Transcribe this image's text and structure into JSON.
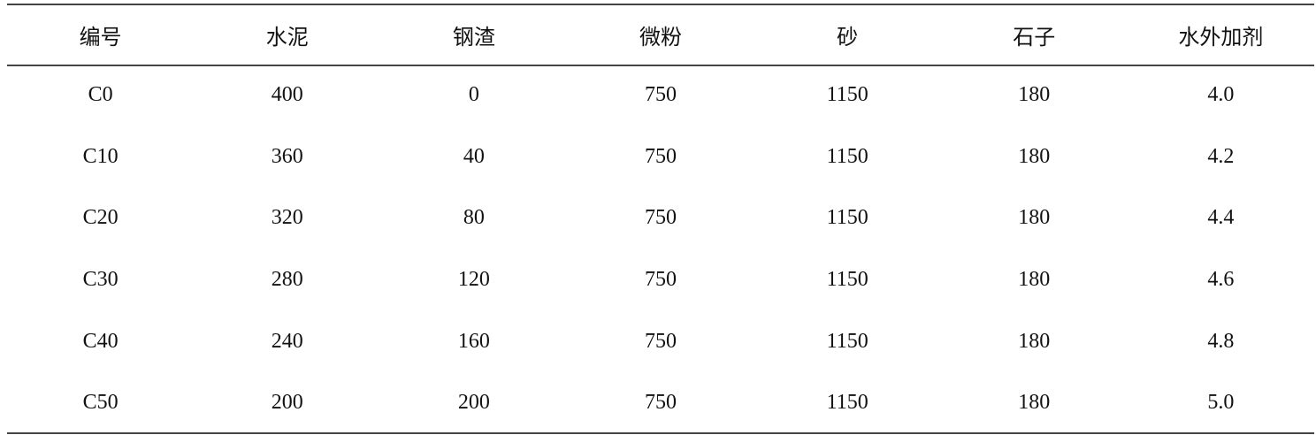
{
  "table": {
    "headers": [
      "编号",
      "水泥",
      "钢渣",
      "微粉",
      "砂",
      "石子",
      "水外加剂"
    ],
    "rows": [
      [
        "C0",
        "400",
        "0",
        "750",
        "1150",
        "180",
        "4.0"
      ],
      [
        "C10",
        "360",
        "40",
        "750",
        "1150",
        "180",
        "4.2"
      ],
      [
        "C20",
        "320",
        "80",
        "750",
        "1150",
        "180",
        "4.4"
      ],
      [
        "C30",
        "280",
        "120",
        "750",
        "1150",
        "180",
        "4.6"
      ],
      [
        "C40",
        "240",
        "160",
        "750",
        "1150",
        "180",
        "4.8"
      ],
      [
        "C50",
        "200",
        "200",
        "750",
        "1150",
        "180",
        "5.0"
      ]
    ]
  }
}
